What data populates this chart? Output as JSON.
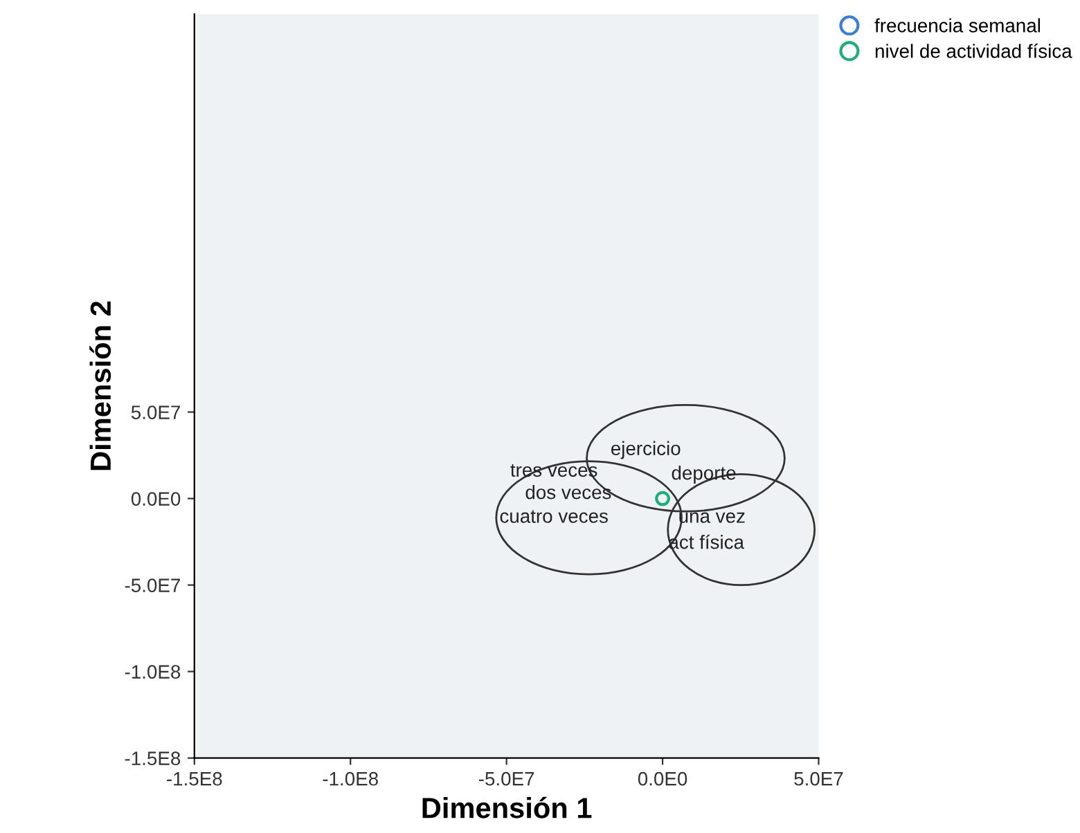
{
  "chart_data": {
    "type": "scatter",
    "xlabel": "Dimensión 1",
    "ylabel": "Dimensión 2",
    "xlim": [
      -150000000,
      50000000
    ],
    "ylim": [
      -150000000,
      280000000
    ],
    "xticks": [
      {
        "value": -150000000,
        "label": "-1.5E8"
      },
      {
        "value": -100000000,
        "label": "-1.0E8"
      },
      {
        "value": -50000000,
        "label": "-5.0E7"
      },
      {
        "value": 0,
        "label": "0.0E0"
      },
      {
        "value": 50000000,
        "label": "5.0E7"
      }
    ],
    "yticks": [
      {
        "value": -150000000,
        "label": "-1.5E8"
      },
      {
        "value": -100000000,
        "label": "-1.0E8"
      },
      {
        "value": -50000000,
        "label": "-5.0E7"
      },
      {
        "value": 0,
        "label": "0.0E0"
      },
      {
        "value": 50000000,
        "label": "5.0E7"
      }
    ],
    "marker": "circle",
    "grid": false,
    "legend": "top right",
    "series": [
      {
        "name": "frecuencia semanal",
        "color": "#3a7fd5"
      },
      {
        "name": "nivel de actividad física",
        "color": "#1fae7a",
        "x": [
          0
        ],
        "values": [
          0
        ]
      }
    ],
    "annotations": [
      "ejercicio",
      "deporte",
      "tres veces",
      "dos veces",
      "cuatro veces",
      "una vez",
      "act física"
    ]
  }
}
